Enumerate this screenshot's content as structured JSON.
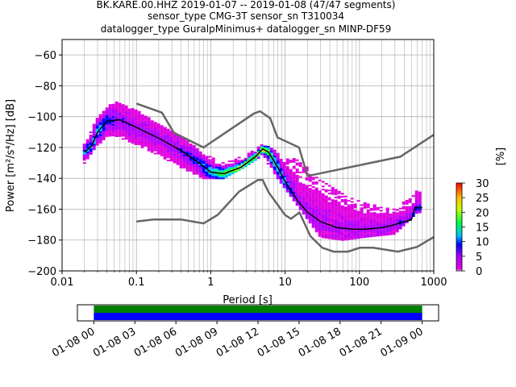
{
  "chart_data": {
    "type": "heatmap",
    "title_lines": [
      "BK.KARE.00.HHZ   2019-01-07 -- 2019-01-08  (47/47 segments)",
      "sensor_type CMG-3T sensor_sn T310034",
      "datalogger_type GuralpMinimus+ datalogger_sn MINP-DF59"
    ],
    "xlabel": "Period [s]",
    "ylabel": "Power [m²/s⁴/Hz] [dB]",
    "x_scale": "log",
    "xlim": [
      0.01,
      1000
    ],
    "ylim": [
      -200,
      -50
    ],
    "x_ticks": [
      0.01,
      0.1,
      1,
      10,
      100,
      1000
    ],
    "x_tick_labels": [
      "0.01",
      "0.1",
      "1",
      "10",
      "100",
      "1000"
    ],
    "y_ticks": [
      -200,
      -180,
      -160,
      -140,
      -120,
      -100,
      -80,
      -60
    ],
    "y_tick_labels": [
      "−200",
      "−180",
      "−160",
      "−140",
      "−120",
      "−100",
      "−80",
      "−60"
    ],
    "grid": true,
    "colorbar": {
      "label": "[%]",
      "range": [
        0,
        30
      ],
      "ticks": [
        0,
        5,
        10,
        15,
        20,
        25,
        30
      ],
      "tick_labels": [
        "0",
        "5",
        "10",
        "15",
        "20",
        "25",
        "30"
      ],
      "colormap": "pqlx"
    },
    "high_noise_model": {
      "color": "#666666",
      "x": [
        0.1,
        0.22,
        0.32,
        0.8,
        3.8,
        4.6,
        6.3,
        7.9,
        15.4,
        20,
        354.8,
        10000
      ],
      "y": [
        -91.5,
        -97.4,
        -110.5,
        -120,
        -98,
        -96.5,
        -101,
        -113.5,
        -120,
        -138.5,
        -126,
        -80
      ]
    },
    "low_noise_model": {
      "color": "#666666",
      "x": [
        0.1,
        0.17,
        0.4,
        0.8,
        1.24,
        2.4,
        4.3,
        5,
        6,
        10,
        12,
        15.6,
        21.9,
        31.6,
        45,
        70,
        101,
        154,
        328,
        600,
        1000
      ],
      "y": [
        -168,
        -166.7,
        -166.7,
        -169.2,
        -163.7,
        -148.6,
        -141.1,
        -141.1,
        -149,
        -163.8,
        -166.2,
        -162.1,
        -177.5,
        -185,
        -187.5,
        -187.5,
        -185,
        -185,
        -187.5,
        -184.4,
        -178
      ]
    },
    "mean_psd": {
      "color": "#000000",
      "x": [
        0.02,
        0.025,
        0.03,
        0.04,
        0.06,
        0.1,
        0.2,
        0.4,
        0.7,
        1.0,
        1.5,
        2.5,
        4.0,
        5.0,
        6.0,
        8.0,
        10,
        12,
        15,
        20,
        30,
        50,
        80,
        120,
        200,
        300,
        400,
        500,
        560,
        700
      ],
      "y": [
        -123,
        -119,
        -110,
        -103,
        -102,
        -107,
        -114,
        -122,
        -130,
        -136,
        -137,
        -133,
        -126,
        -121,
        -123,
        -133,
        -142,
        -148,
        -155,
        -162,
        -168,
        -172,
        -173,
        -173,
        -172,
        -170,
        -168,
        -167,
        -159,
        -159
      ]
    },
    "psd_band_percent": [
      {
        "x": 0.02,
        "lo": -130,
        "hi": -118,
        "pct": 12
      },
      {
        "x": 0.03,
        "lo": -118,
        "hi": -100,
        "pct": 14
      },
      {
        "x": 0.05,
        "lo": -112,
        "hi": -90,
        "pct": 8
      },
      {
        "x": 0.1,
        "lo": -118,
        "hi": -95,
        "pct": 6
      },
      {
        "x": 0.2,
        "lo": -125,
        "hi": -105,
        "pct": 6
      },
      {
        "x": 0.4,
        "lo": -133,
        "hi": -112,
        "pct": 7
      },
      {
        "x": 0.8,
        "lo": -140,
        "hi": -124,
        "pct": 12
      },
      {
        "x": 1.5,
        "lo": -140,
        "hi": -130,
        "pct": 22
      },
      {
        "x": 3,
        "lo": -132,
        "hi": -124,
        "pct": 24
      },
      {
        "x": 5,
        "lo": -125,
        "hi": -118,
        "pct": 26
      },
      {
        "x": 8,
        "lo": -140,
        "hi": -122,
        "pct": 14
      },
      {
        "x": 15,
        "lo": -158,
        "hi": -128,
        "pct": 6
      },
      {
        "x": 30,
        "lo": -178,
        "hi": -140,
        "pct": 5
      },
      {
        "x": 60,
        "lo": -180,
        "hi": -150,
        "pct": 5
      },
      {
        "x": 120,
        "lo": -178,
        "hi": -156,
        "pct": 5
      },
      {
        "x": 300,
        "lo": -176,
        "hi": -160,
        "pct": 7
      },
      {
        "x": 600,
        "lo": -162,
        "hi": -148,
        "pct": 10
      }
    ],
    "coverage": {
      "ticks": [
        "01-08 00",
        "01-08 03",
        "01-08 06",
        "01-08 09",
        "01-08 12",
        "01-08 15",
        "01-08 18",
        "01-08 21",
        "01-09 00"
      ],
      "start_hour": -1.2,
      "end_hour": 25.2,
      "data_start": 0,
      "data_end": 24,
      "colors": [
        "#008000",
        "#0000ff"
      ]
    }
  }
}
